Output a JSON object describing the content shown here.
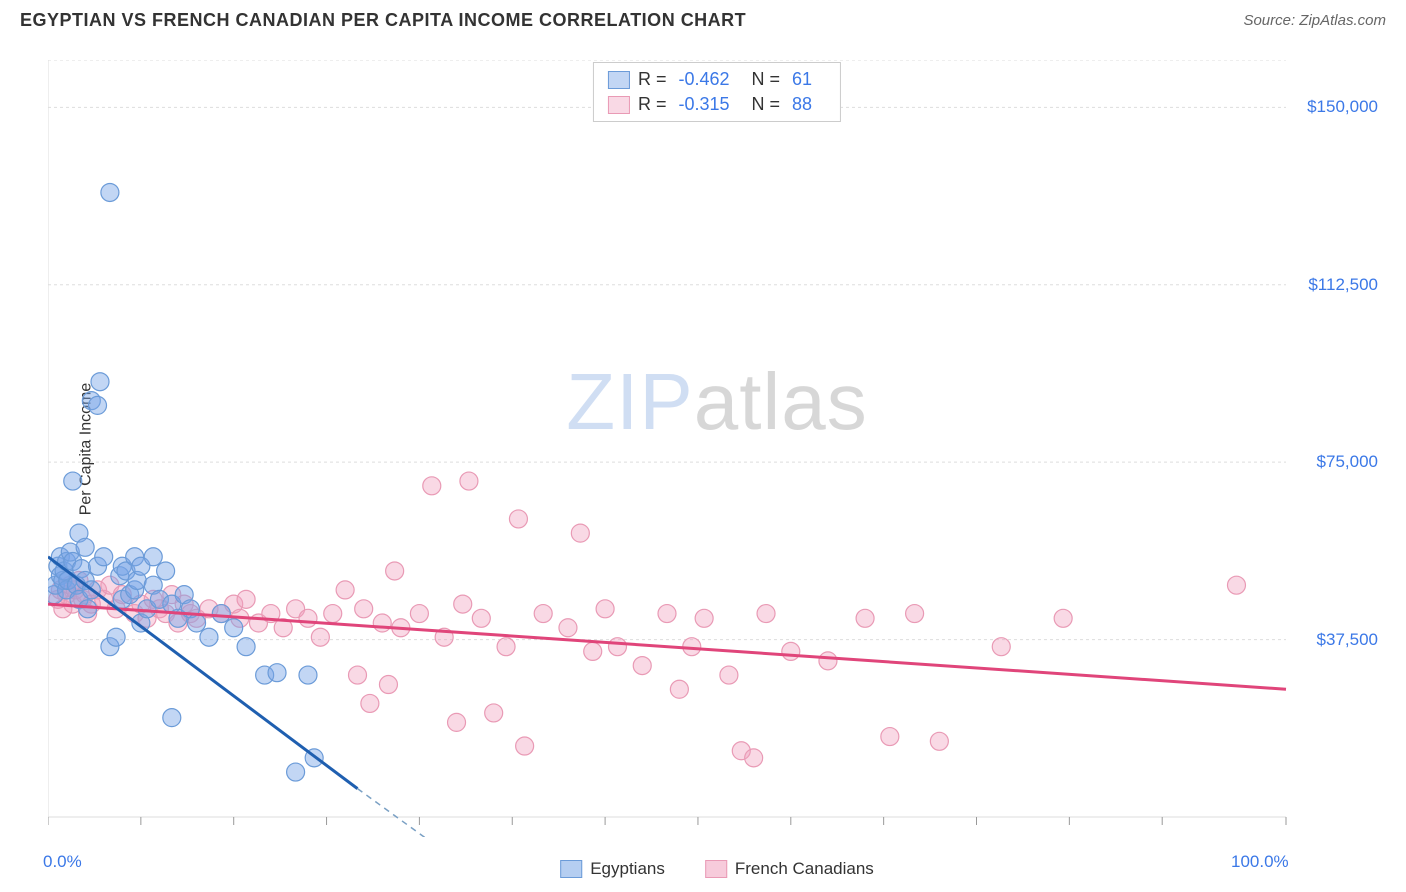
{
  "header": {
    "title": "EGYPTIAN VS FRENCH CANADIAN PER CAPITA INCOME CORRELATION CHART",
    "source": "Source: ZipAtlas.com"
  },
  "watermark": {
    "part1": "ZIP",
    "part2": "atlas"
  },
  "chart": {
    "type": "scatter",
    "ylabel": "Per Capita Income",
    "xlim": [
      0,
      100
    ],
    "ylim": [
      0,
      160000
    ],
    "ytick_values": [
      37500,
      75000,
      112500,
      150000
    ],
    "ytick_labels": [
      "$37,500",
      "$75,000",
      "$112,500",
      "$150,000"
    ],
    "xtick_values": [
      0,
      7.5,
      15,
      22.5,
      30,
      37.5,
      45,
      52.5,
      60,
      67.5,
      75,
      82.5,
      90,
      100
    ],
    "xtick_labels_shown": {
      "0": "0.0%",
      "100": "100.0%"
    },
    "grid_color": "#dddddd",
    "axis_color": "#999999",
    "background_color": "#ffffff",
    "marker_radius": 9,
    "marker_stroke_width": 1.2,
    "series": [
      {
        "name": "Egyptians",
        "fill_color": "rgba(120,165,230,0.45)",
        "stroke_color": "#6b9bd8",
        "trend_color": "#1f5fb0",
        "trend_dash_color": "#7aa0c4",
        "trend_width": 3,
        "R": "-0.462",
        "N": "61",
        "trend_solid": {
          "x1": 0,
          "y1": 55000,
          "x2": 25,
          "y2": 6000
        },
        "trend_dashed": {
          "x1": 25,
          "y1": 6000,
          "x2": 35,
          "y2": -13000
        },
        "points": [
          [
            0.5,
            47000
          ],
          [
            0.6,
            49000
          ],
          [
            0.8,
            53000
          ],
          [
            1.0,
            51000
          ],
          [
            1.0,
            55000
          ],
          [
            1.2,
            50000
          ],
          [
            1.3,
            52000
          ],
          [
            1.5,
            48000
          ],
          [
            1.5,
            54000
          ],
          [
            1.6,
            50000
          ],
          [
            1.8,
            56000
          ],
          [
            2.0,
            54000
          ],
          [
            2.0,
            71000
          ],
          [
            2.3,
            49000
          ],
          [
            2.5,
            60000
          ],
          [
            2.5,
            46000
          ],
          [
            2.7,
            52500
          ],
          [
            3.0,
            50000
          ],
          [
            3.0,
            57000
          ],
          [
            3.2,
            44000
          ],
          [
            3.5,
            48000
          ],
          [
            3.5,
            88000
          ],
          [
            4.0,
            53000
          ],
          [
            4.0,
            87000
          ],
          [
            4.2,
            92000
          ],
          [
            4.5,
            55000
          ],
          [
            5.0,
            132000
          ],
          [
            5.0,
            36000
          ],
          [
            5.5,
            38000
          ],
          [
            5.8,
            51000
          ],
          [
            6.0,
            53000
          ],
          [
            6.0,
            46000
          ],
          [
            6.3,
            52000
          ],
          [
            6.6,
            47000
          ],
          [
            7.0,
            55000
          ],
          [
            7.0,
            48000
          ],
          [
            7.2,
            50000
          ],
          [
            7.5,
            53000
          ],
          [
            7.5,
            41000
          ],
          [
            8.0,
            44000
          ],
          [
            8.5,
            49000
          ],
          [
            8.5,
            55000
          ],
          [
            9.0,
            46000
          ],
          [
            9.5,
            52000
          ],
          [
            10.0,
            45000
          ],
          [
            10.0,
            21000
          ],
          [
            10.5,
            42000
          ],
          [
            11.0,
            47000
          ],
          [
            11.5,
            44000
          ],
          [
            12.0,
            41000
          ],
          [
            13.0,
            38000
          ],
          [
            14.0,
            43000
          ],
          [
            15.0,
            40000
          ],
          [
            16.0,
            36000
          ],
          [
            17.5,
            30000
          ],
          [
            18.5,
            30500
          ],
          [
            20.0,
            9500
          ],
          [
            21.0,
            30000
          ],
          [
            21.5,
            12500
          ]
        ]
      },
      {
        "name": "French Canadians",
        "fill_color": "rgba(240,160,190,0.40)",
        "stroke_color": "#e99ab5",
        "trend_color": "#e0457a",
        "trend_width": 3,
        "R": "-0.315",
        "N": "88",
        "trend_solid": {
          "x1": 0,
          "y1": 45000,
          "x2": 100,
          "y2": 27000
        },
        "points": [
          [
            0.8,
            46000
          ],
          [
            1.0,
            48000
          ],
          [
            1.2,
            44000
          ],
          [
            1.5,
            47000
          ],
          [
            1.8,
            49000
          ],
          [
            2.0,
            45000
          ],
          [
            2.2,
            48000
          ],
          [
            2.5,
            50000
          ],
          [
            2.8,
            46000
          ],
          [
            3.0,
            47000
          ],
          [
            3.2,
            43000
          ],
          [
            3.5,
            45000
          ],
          [
            4.0,
            48000
          ],
          [
            4.5,
            46000
          ],
          [
            5.0,
            49000
          ],
          [
            5.5,
            44000
          ],
          [
            6.0,
            47000
          ],
          [
            7.0,
            43000
          ],
          [
            7.5,
            45000
          ],
          [
            8.0,
            42000
          ],
          [
            8.5,
            46000
          ],
          [
            9.0,
            44000
          ],
          [
            9.5,
            43000
          ],
          [
            10.0,
            47000
          ],
          [
            10.5,
            41000
          ],
          [
            11.0,
            45000
          ],
          [
            11.5,
            43000
          ],
          [
            12.0,
            42000
          ],
          [
            13.0,
            44000
          ],
          [
            14.0,
            43000
          ],
          [
            15.0,
            45000
          ],
          [
            15.5,
            42000
          ],
          [
            16.0,
            46000
          ],
          [
            17.0,
            41000
          ],
          [
            18.0,
            43000
          ],
          [
            19.0,
            40000
          ],
          [
            20.0,
            44000
          ],
          [
            21.0,
            42000
          ],
          [
            22.0,
            38000
          ],
          [
            23.0,
            43000
          ],
          [
            24.0,
            48000
          ],
          [
            25.0,
            30000
          ],
          [
            25.5,
            44000
          ],
          [
            26.0,
            24000
          ],
          [
            27.0,
            41000
          ],
          [
            27.5,
            28000
          ],
          [
            28.0,
            52000
          ],
          [
            28.5,
            40000
          ],
          [
            30.0,
            43000
          ],
          [
            31.0,
            70000
          ],
          [
            32.0,
            38000
          ],
          [
            33.0,
            20000
          ],
          [
            33.5,
            45000
          ],
          [
            34.0,
            71000
          ],
          [
            35.0,
            42000
          ],
          [
            36.0,
            22000
          ],
          [
            37.0,
            36000
          ],
          [
            38.0,
            63000
          ],
          [
            38.5,
            15000
          ],
          [
            40.0,
            43000
          ],
          [
            42.0,
            40000
          ],
          [
            43.0,
            60000
          ],
          [
            44.0,
            35000
          ],
          [
            45.0,
            44000
          ],
          [
            46.0,
            36000
          ],
          [
            48.0,
            32000
          ],
          [
            50.0,
            43000
          ],
          [
            51.0,
            27000
          ],
          [
            52.0,
            36000
          ],
          [
            53.0,
            42000
          ],
          [
            55.0,
            30000
          ],
          [
            56.0,
            14000
          ],
          [
            57.0,
            12500
          ],
          [
            58.0,
            43000
          ],
          [
            60.0,
            35000
          ],
          [
            63.0,
            33000
          ],
          [
            66.0,
            42000
          ],
          [
            68.0,
            17000
          ],
          [
            70.0,
            43000
          ],
          [
            72.0,
            16000
          ],
          [
            77.0,
            36000
          ],
          [
            82.0,
            42000
          ],
          [
            96.0,
            49000
          ]
        ]
      }
    ],
    "legend_bottom": [
      {
        "label": "Egyptians",
        "fill": "rgba(120,165,230,0.55)",
        "border": "#6b9bd8"
      },
      {
        "label": "French Canadians",
        "fill": "rgba(240,160,190,0.55)",
        "border": "#e99ab5"
      }
    ]
  }
}
